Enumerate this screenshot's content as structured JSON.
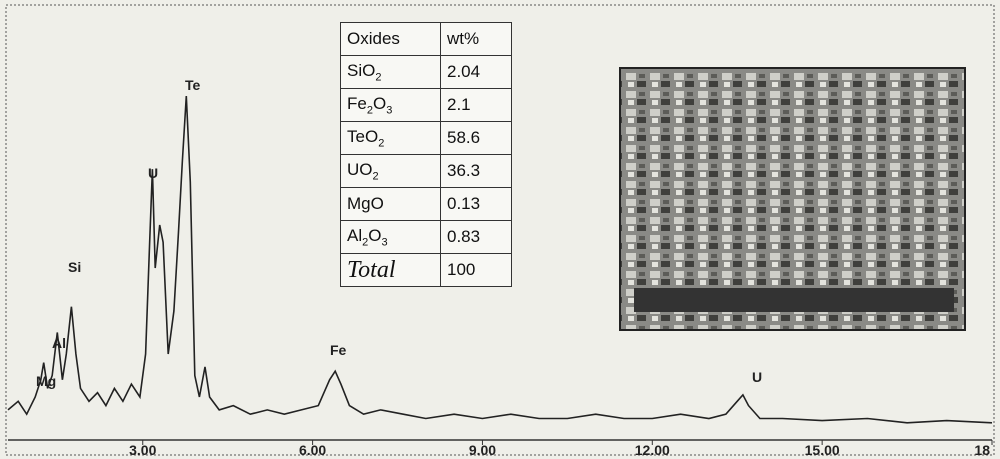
{
  "chart_data": {
    "type": "line",
    "x": [
      0.62,
      0.8,
      0.95,
      1.1,
      1.2,
      1.25,
      1.32,
      1.4,
      1.49,
      1.58,
      1.65,
      1.74,
      1.82,
      1.9,
      2.05,
      2.2,
      2.35,
      2.5,
      2.65,
      2.8,
      2.95,
      3.05,
      3.12,
      3.17,
      3.22,
      3.3,
      3.36,
      3.45,
      3.55,
      3.63,
      3.7,
      3.77,
      3.84,
      3.92,
      4.0,
      4.1,
      4.18,
      4.35,
      4.6,
      4.9,
      5.2,
      5.5,
      5.8,
      6.1,
      6.3,
      6.4,
      6.5,
      6.65,
      6.9,
      7.2,
      7.6,
      8.0,
      8.5,
      9.0,
      9.5,
      10.0,
      10.5,
      11.0,
      11.5,
      12.0,
      12.5,
      13.0,
      13.3,
      13.5,
      13.6,
      13.7,
      13.9,
      14.3,
      15.0,
      15.8,
      16.5,
      17.2,
      18
    ],
    "series": [
      {
        "color": "#222",
        "values": [
          7,
          9,
          6,
          10,
          14,
          18,
          12,
          15,
          25,
          14,
          20,
          31,
          20,
          12,
          9,
          11,
          8,
          12,
          9,
          13,
          10,
          20,
          45,
          63,
          40,
          50,
          46,
          20,
          30,
          48,
          65,
          80,
          60,
          15,
          10,
          17,
          10,
          7,
          8,
          6,
          7,
          6,
          7,
          8,
          14,
          16,
          13,
          8,
          6,
          7,
          6,
          5,
          6,
          5,
          6,
          5,
          5,
          6,
          5,
          5,
          6,
          5,
          6,
          9,
          10.5,
          8,
          5,
          5,
          4.5,
          5,
          4,
          4.5,
          4
        ]
      }
    ],
    "xlim": [
      0.62,
      18
    ],
    "ylim": [
      0,
      100
    ],
    "xticks": [
      {
        "value": 3,
        "label": "3.00"
      },
      {
        "value": 6,
        "label": "6.00"
      },
      {
        "value": 9,
        "label": "9.00"
      },
      {
        "value": 12,
        "label": "12.00"
      },
      {
        "value": 15,
        "label": "15.00"
      },
      18
    ],
    "annotations": [
      "Te",
      "U",
      "Si",
      "Al",
      "Mg",
      "Fe",
      "U"
    ]
  },
  "table": {
    "header": [
      "Oxides",
      "wt%"
    ],
    "rows": [
      {
        "name_parts": [
          "SiO",
          "2"
        ],
        "value": 2.04
      },
      {
        "name_parts": [
          "Fe",
          "2",
          "O",
          "3"
        ],
        "value": 2.1
      },
      {
        "name_parts": [
          "TeO",
          "2"
        ],
        "value": 58.6
      },
      {
        "name_parts": [
          "UO",
          "2"
        ],
        "value": 36.3
      },
      {
        "name_parts": [
          "MgO"
        ],
        "value": 0.13
      },
      {
        "name_parts": [
          "Al",
          "2",
          "O",
          "3"
        ],
        "value": 0.83
      }
    ],
    "total": {
      "label": "Total",
      "value": 100
    }
  }
}
